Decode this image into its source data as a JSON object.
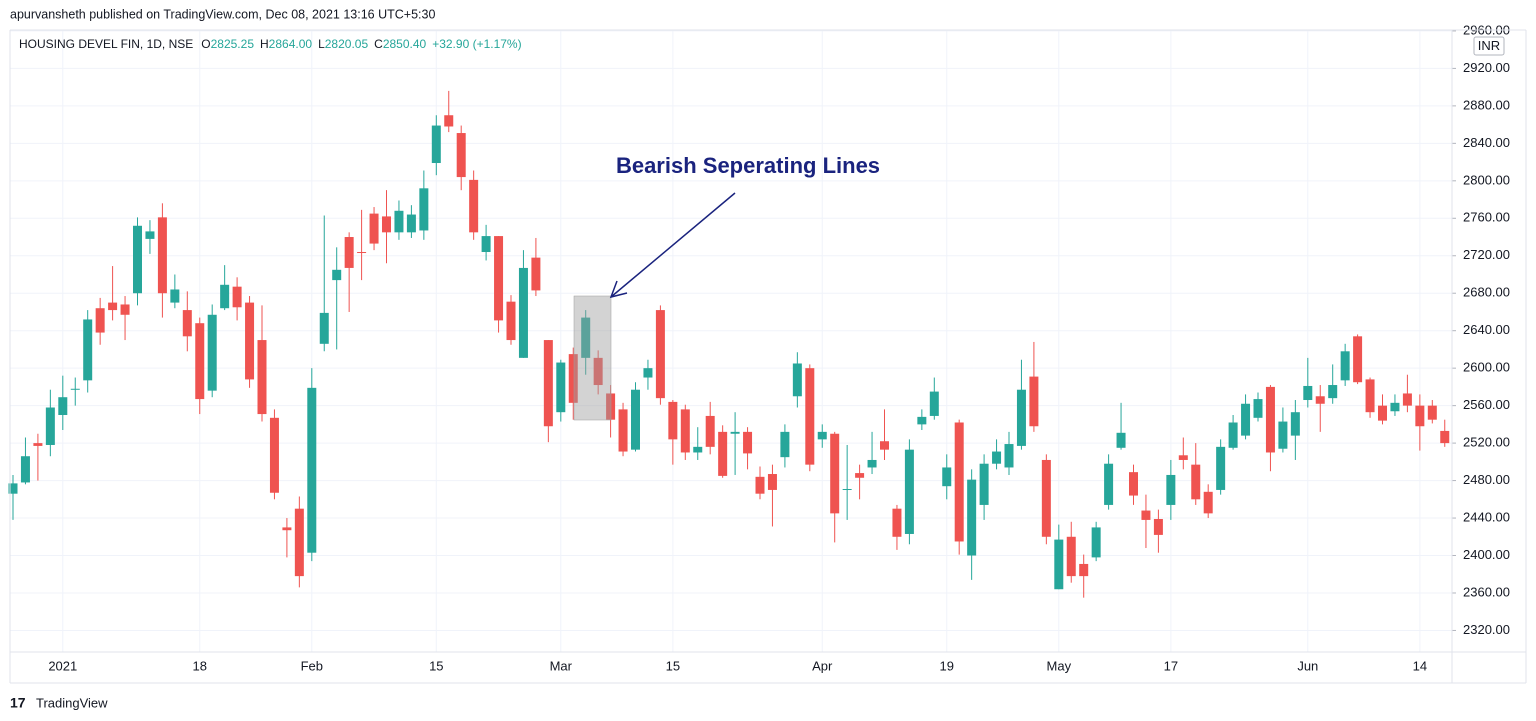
{
  "header": {
    "publisher": "apurvansheth published on TradingView.com, Dec 08, 2021 13:16 UTC+5:30"
  },
  "chart_data": {
    "type": "candlestick",
    "title": "HOUSING DEVEL FIN, 1D, NSE",
    "ohlc_legend": [
      {
        "label": "O",
        "value": "2825.25"
      },
      {
        "label": "H",
        "value": "2864.00"
      },
      {
        "label": "L",
        "value": "2820.05"
      },
      {
        "label": "C",
        "value": "2850.40"
      }
    ],
    "change": "+32.90 (+1.17%)",
    "currency": "INR",
    "annotation": "Bearish Seperating Lines",
    "up_color": "#26a69a",
    "down_color": "#ef5350",
    "grid": true,
    "ylim": [
      2297,
      2961
    ],
    "yticks": [
      {
        "value": 2320,
        "label": "2320.00"
      },
      {
        "value": 2360,
        "label": "2360.00"
      },
      {
        "value": 2400,
        "label": "2400.00"
      },
      {
        "value": 2440,
        "label": "2440.00"
      },
      {
        "value": 2480,
        "label": "2480.00"
      },
      {
        "value": 2520,
        "label": "2520.00"
      },
      {
        "value": 2560,
        "label": "2560.00"
      },
      {
        "value": 2600,
        "label": "2600.00"
      },
      {
        "value": 2640,
        "label": "2640.00"
      },
      {
        "value": 2680,
        "label": "2680.00"
      },
      {
        "value": 2720,
        "label": "2720.00"
      },
      {
        "value": 2760,
        "label": "2760.00"
      },
      {
        "value": 2800,
        "label": "2800.00"
      },
      {
        "value": 2840,
        "label": "2840.00"
      },
      {
        "value": 2880,
        "label": "2880.00"
      },
      {
        "value": 2920,
        "label": "2920.00"
      },
      {
        "value": 2960,
        "label": "2960.00"
      }
    ],
    "categories": [
      null,
      null,
      null,
      null,
      "2021",
      null,
      null,
      null,
      null,
      null,
      null,
      null,
      null,
      null,
      null,
      "18",
      null,
      null,
      null,
      null,
      null,
      null,
      null,
      null,
      "Feb",
      null,
      null,
      null,
      null,
      null,
      null,
      null,
      null,
      null,
      "15",
      null,
      null,
      null,
      null,
      null,
      null,
      null,
      null,
      null,
      "Mar",
      null,
      null,
      null,
      null,
      null,
      null,
      null,
      null,
      "15",
      null,
      null,
      null,
      null,
      null,
      null,
      null,
      null,
      null,
      null,
      null,
      "Apr",
      null,
      null,
      null,
      null,
      null,
      null,
      null,
      null,
      null,
      "19",
      null,
      null,
      null,
      null,
      null,
      null,
      null,
      null,
      "May",
      null,
      null,
      null,
      null,
      null,
      null,
      null,
      null,
      "17",
      null,
      null,
      null,
      null,
      null,
      null,
      null,
      null,
      null,
      null,
      "Jun",
      null,
      null,
      null,
      null,
      null,
      null,
      null,
      null,
      "14",
      null,
      null
    ],
    "open": [
      2466,
      2478,
      2520,
      2518,
      2550,
      2577,
      2587,
      2664,
      2670,
      2668,
      2680,
      2738,
      2761,
      2670,
      2662,
      2648,
      2576,
      2664,
      2687,
      2670,
      2630,
      2547,
      2430,
      2450,
      2403,
      2626,
      2694,
      2740,
      2724,
      2765,
      2762,
      2745,
      2745,
      2747,
      2819,
      2870,
      2851,
      2801,
      2724,
      2741,
      2671,
      2611,
      2718,
      2630,
      2553,
      2615,
      2611,
      2611,
      2573,
      2556,
      2513,
      2590,
      2662,
      2564,
      2556,
      2510,
      2549,
      2532,
      2530,
      2532,
      2484,
      2487,
      2505,
      2570,
      2600,
      2524,
      2530,
      2470,
      2488,
      2494,
      2522,
      2450,
      2423,
      2540,
      2549,
      2474,
      2542,
      2400,
      2454,
      2498,
      2494,
      2517,
      2591,
      2502,
      2364,
      2420,
      2391,
      2398,
      2454,
      2515,
      2489,
      2448,
      2439,
      2454,
      2507,
      2497,
      2468,
      2470,
      2515,
      2528,
      2547,
      2580,
      2514,
      2528,
      2566,
      2570,
      2568,
      2587,
      2634,
      2588,
      2560,
      2554,
      2573,
      2560,
      2560,
      2533
    ],
    "high": [
      2486,
      2526,
      2530,
      2577,
      2592,
      2590,
      2662,
      2675,
      2709,
      2677,
      2761,
      2758,
      2776,
      2700,
      2682,
      2654,
      2668,
      2710,
      2697,
      2677,
      2667,
      2556,
      2440,
      2463,
      2600,
      2763,
      2729,
      2745,
      2769,
      2772,
      2790,
      2779,
      2774,
      2811,
      2870,
      2896,
      2859,
      2811,
      2753,
      2741,
      2678,
      2726,
      2739,
      2630,
      2609,
      2622,
      2662,
      2619,
      2582,
      2563,
      2585,
      2609,
      2667,
      2566,
      2561,
      2537,
      2564,
      2539,
      2553,
      2537,
      2495,
      2497,
      2540,
      2617,
      2604,
      2540,
      2532,
      2518,
      2497,
      2532,
      2556,
      2454,
      2524,
      2556,
      2590,
      2508,
      2545,
      2492,
      2508,
      2524,
      2532,
      2609,
      2628,
      2508,
      2433,
      2436,
      2401,
      2436,
      2508,
      2563,
      2497,
      2465,
      2449,
      2502,
      2526,
      2520,
      2476,
      2524,
      2550,
      2572,
      2574,
      2582,
      2558,
      2566,
      2611,
      2582,
      2604,
      2626,
      2636,
      2590,
      2572,
      2572,
      2593,
      2572,
      2566,
      2545
    ],
    "low": [
      2438,
      2476,
      2480,
      2506,
      2534,
      2560,
      2574,
      2625,
      2651,
      2630,
      2667,
      2722,
      2654,
      2664,
      2618,
      2551,
      2569,
      2662,
      2651,
      2579,
      2543,
      2460,
      2398,
      2366,
      2394,
      2618,
      2620,
      2660,
      2694,
      2726,
      2712,
      2737,
      2739,
      2737,
      2806,
      2852,
      2790,
      2737,
      2715,
      2638,
      2625,
      2611,
      2677,
      2521,
      2543,
      2545,
      2593,
      2572,
      2526,
      2506,
      2511,
      2577,
      2561,
      2497,
      2502,
      2502,
      2508,
      2483,
      2486,
      2492,
      2460,
      2431,
      2494,
      2558,
      2490,
      2515,
      2414,
      2438,
      2460,
      2487,
      2502,
      2406,
      2412,
      2534,
      2545,
      2460,
      2401,
      2374,
      2438,
      2492,
      2486,
      2513,
      2532,
      2412,
      2364,
      2371,
      2355,
      2394,
      2449,
      2513,
      2454,
      2408,
      2403,
      2438,
      2492,
      2454,
      2440,
      2465,
      2513,
      2524,
      2543,
      2490,
      2510,
      2502,
      2558,
      2532,
      2562,
      2581,
      2583,
      2547,
      2540,
      2549,
      2553,
      2512,
      2541,
      2516
    ],
    "close": [
      2477,
      2506,
      2517,
      2558,
      2569,
      2578,
      2652,
      2638,
      2662,
      2657,
      2752,
      2746,
      2680,
      2684,
      2634,
      2567,
      2657,
      2689,
      2665,
      2588,
      2551,
      2467,
      2427,
      2378,
      2579,
      2659,
      2705,
      2707,
      2723,
      2733,
      2745,
      2768,
      2764,
      2792,
      2859,
      2858,
      2804,
      2745,
      2741,
      2651,
      2630,
      2707,
      2683,
      2538,
      2606,
      2563,
      2654,
      2582,
      2545,
      2511,
      2577,
      2600,
      2568,
      2524,
      2510,
      2516,
      2516,
      2485,
      2532,
      2509,
      2466,
      2470,
      2532,
      2605,
      2497,
      2532,
      2445,
      2471,
      2483,
      2502,
      2513,
      2420,
      2513,
      2548,
      2575,
      2494,
      2415,
      2481,
      2498,
      2511,
      2519,
      2577,
      2538,
      2420,
      2417,
      2378,
      2378,
      2430,
      2498,
      2531,
      2464,
      2438,
      2422,
      2486,
      2502,
      2460,
      2445,
      2516,
      2542,
      2562,
      2567,
      2510,
      2543,
      2553,
      2581,
      2562,
      2582,
      2618,
      2585,
      2553,
      2544,
      2563,
      2560,
      2538,
      2545,
      2520
    ]
  },
  "footer": {
    "brand": "TradingView"
  }
}
